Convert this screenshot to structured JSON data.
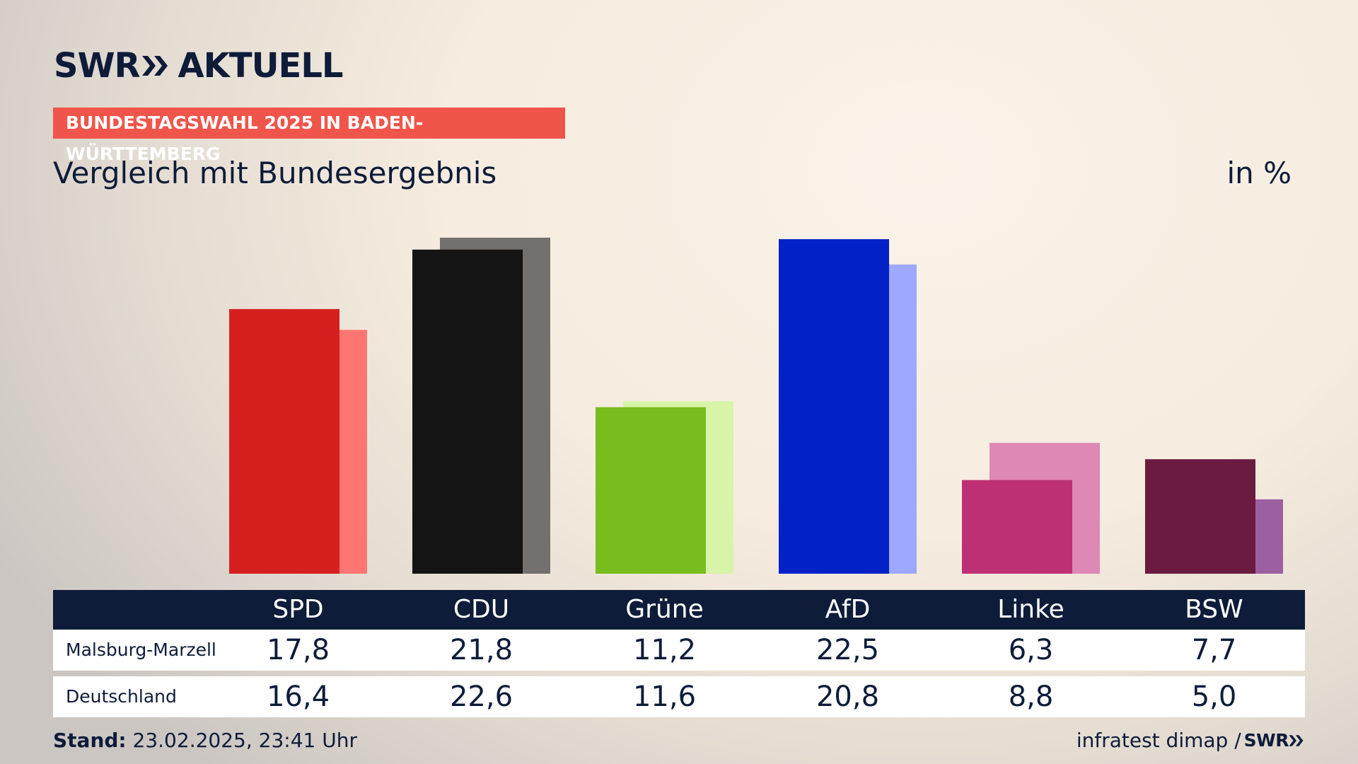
{
  "header": {
    "logo_text": "SWR",
    "logo_suffix": "AKTUELL",
    "banner": "BUNDESTAGSWAHL 2025 IN BADEN-WÜRTTEMBERG",
    "subtitle": "Vergleich mit Bundesergebnis",
    "unit": "in %"
  },
  "chart_data": {
    "type": "bar",
    "categories": [
      "SPD",
      "CDU",
      "Grüne",
      "AfD",
      "Linke",
      "BSW"
    ],
    "series": [
      {
        "name": "Malsburg-Marzell",
        "values": [
          17.8,
          21.8,
          11.2,
          22.5,
          6.3,
          7.7
        ]
      },
      {
        "name": "Deutschland",
        "values": [
          16.4,
          22.6,
          11.6,
          20.8,
          8.8,
          5.0
        ]
      }
    ],
    "colors_primary": [
      "#d62020",
      "#141414",
      "#79bc1e",
      "#0222c8",
      "#bd3174",
      "#6b1a40"
    ],
    "colors_secondary": [
      "#ff7670",
      "#73706d",
      "#d8f4a8",
      "#9da9ff",
      "#de88b6",
      "#9c5fa0"
    ],
    "ylim": [
      0,
      22.6
    ]
  },
  "table": {
    "rows": [
      {
        "label": "Malsburg-Marzell",
        "values": [
          "17,8",
          "21,8",
          "11,2",
          "22,5",
          "6,3",
          "7,7"
        ]
      },
      {
        "label": "Deutschland",
        "values": [
          "16,4",
          "22,6",
          "11,6",
          "20,8",
          "8,8",
          "5,0"
        ]
      }
    ]
  },
  "footer": {
    "stand_label": "Stand:",
    "stand_value": "23.02.2025, 23:41 Uhr",
    "source": "infratest dimap /",
    "source_brand": "SWR"
  }
}
